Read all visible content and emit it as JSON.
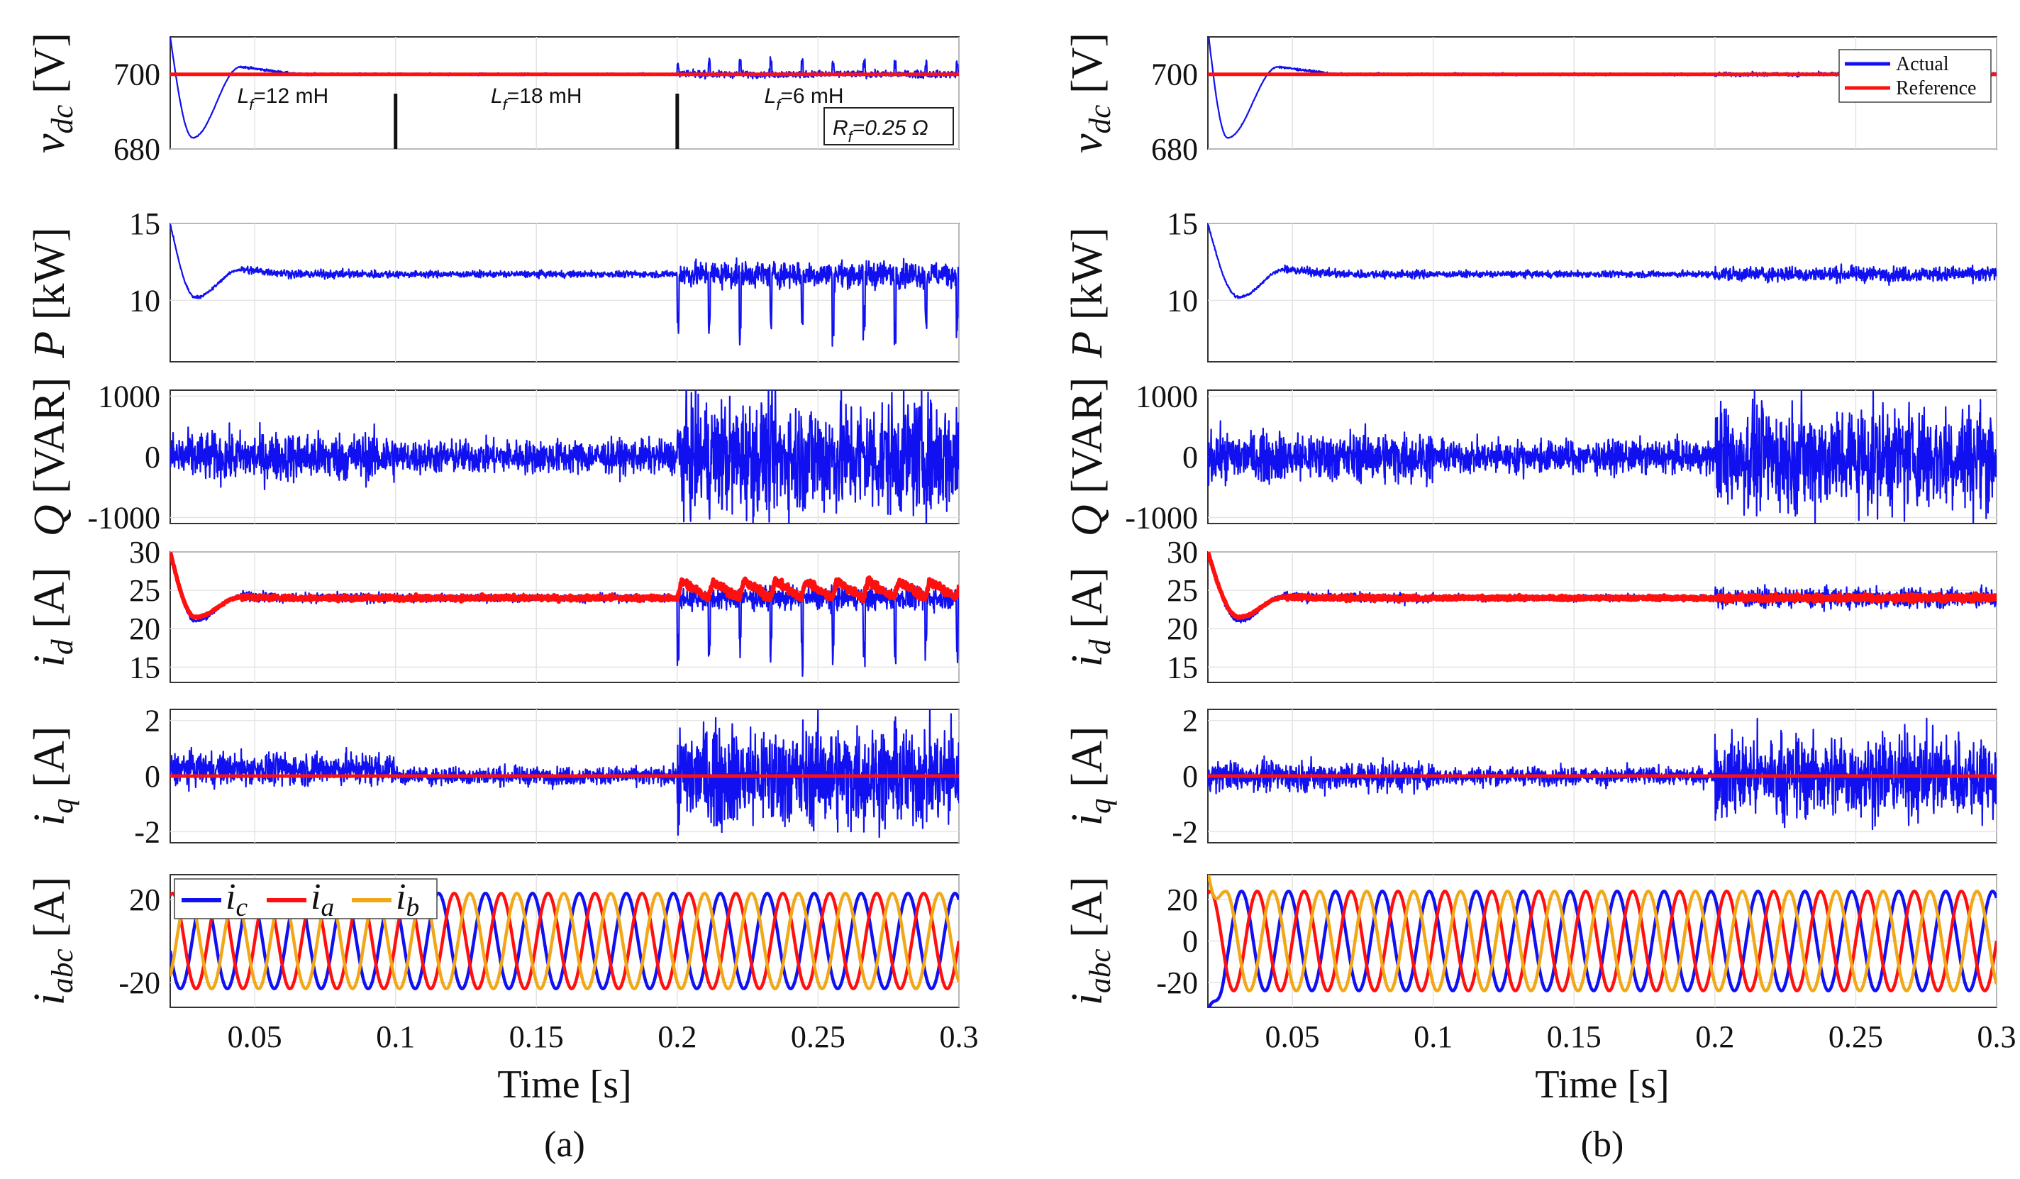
{
  "chart_data": [
    {
      "id": "a",
      "type": "line",
      "caption": "(a)",
      "xlabel": "Time [s]",
      "xlim": [
        0.02,
        0.3
      ],
      "xticks": [
        0.05,
        0.1,
        0.15,
        0.2,
        0.25,
        0.3
      ],
      "xtick_labels": [
        "0.05",
        "0.1",
        "0.15",
        "0.2",
        "0.25",
        "0.3"
      ],
      "grid": true,
      "panels": [
        {
          "key": "vdc",
          "ylabel": "v_dc [V]",
          "ylim": [
            680,
            710
          ],
          "yticks": [
            680,
            700
          ],
          "ytick_labels": [
            "680",
            "700"
          ],
          "series": [
            {
              "name": "Actual",
              "color": "#1010f0",
              "signal": "vdc",
              "base": 700,
              "noise": [
                [
                  0.02,
                  0.3
                ],
                [
                  0.1,
                  0.3
                ],
                [
                  0.2,
                  0.9
                ]
              ],
              "transient": {
                "from": 710,
                "dip": 683,
                "at": 0.028,
                "overshoot": 702,
                "settle": 0.045
              },
              "spikes": {
                "start": 0.2,
                "period": 0.011,
                "amp": 4
              }
            },
            {
              "name": "Reference",
              "color": "#ff1010",
              "signal": "const",
              "value": 700
            }
          ],
          "annotations": {
            "labels": [
              {
                "main": "L",
                "sub": "f",
                "rest": "=12 mH",
                "x": 0.06
              },
              {
                "main": "L",
                "sub": "f",
                "rest": "=18 mH",
                "x": 0.15
              },
              {
                "main": "L",
                "sub": "f",
                "rest": "=6 mH",
                "x": 0.245
              }
            ],
            "markers": [
              0.1,
              0.2
            ],
            "box": {
              "main": "R",
              "sub": "f",
              "rest": "=0.25 Ω"
            }
          }
        },
        {
          "key": "P",
          "ylabel": "P [kW]",
          "ylim": [
            6,
            15
          ],
          "yticks": [
            10,
            15
          ],
          "ytick_labels": [
            "10",
            "15"
          ],
          "series": [
            {
              "name": "Actual",
              "color": "#1010f0",
              "signal": "P",
              "base": 11.7,
              "noise": [
                [
                  0.02,
                  0.25
                ],
                [
                  0.1,
                  0.2
                ],
                [
                  0.2,
                  0.8
                ]
              ],
              "transient": {
                "from": 15,
                "dip": 10.2,
                "at": 0.029,
                "overshoot": 12.0,
                "settle": 0.045
              },
              "spikes": {
                "start": 0.2,
                "period": 0.011,
                "amp": -4.5
              }
            }
          ]
        },
        {
          "key": "Q",
          "ylabel": "Q [VAR]",
          "ylim": [
            -1100,
            1100
          ],
          "yticks": [
            -1000,
            0,
            1000
          ],
          "ytick_labels": [
            "-1000",
            "0",
            "1000"
          ],
          "series": [
            {
              "name": "Actual",
              "color": "#1010f0",
              "signal": "Q",
              "base": 0,
              "noise": [
                [
                  0.02,
                  380
                ],
                [
                  0.1,
                  260
                ],
                [
                  0.2,
                  900
                ]
              ]
            }
          ]
        },
        {
          "key": "id",
          "ylabel": "i_d [A]",
          "ylim": [
            13,
            30
          ],
          "yticks": [
            15,
            20,
            25,
            30
          ],
          "ytick_labels": [
            "15",
            "20",
            "25",
            "30"
          ],
          "series": [
            {
              "name": "Actual",
              "color": "#1010f0",
              "signal": "id",
              "base": 24,
              "noise": [
                [
                  0.02,
                  0.6
                ],
                [
                  0.1,
                  0.5
                ],
                [
                  0.2,
                  1.4
                ]
              ],
              "transient": {
                "from": 30,
                "dip": 21,
                "at": 0.029,
                "overshoot": 24.3,
                "settle": 0.045
              },
              "spikes": {
                "start": 0.2,
                "period": 0.011,
                "amp": -9
              }
            },
            {
              "name": "Reference",
              "color": "#ff1010",
              "signal": "idref",
              "base": 24,
              "noise": [
                [
                  0.02,
                  0.3
                ],
                [
                  0.1,
                  0.3
                ],
                [
                  0.2,
                  0.5
                ]
              ],
              "transient": {
                "from": 30,
                "dip": 21.5,
                "at": 0.029,
                "overshoot": 24.1,
                "settle": 0.045
              },
              "saw": {
                "start": 0.2,
                "period": 0.011,
                "amp": 2.2
              }
            }
          ]
        },
        {
          "key": "iq",
          "ylabel": "i_q [A]",
          "ylim": [
            -2.4,
            2.4
          ],
          "yticks": [
            -2,
            0,
            2
          ],
          "ytick_labels": [
            "-2",
            "0",
            "2"
          ],
          "series": [
            {
              "name": "Actual",
              "color": "#1010f0",
              "signal": "iq",
              "base": 0,
              "noise": [
                [
                  0.02,
                  0.55
                ],
                [
                  0.1,
                  0.3
                ],
                [
                  0.2,
                  1.7
                ]
              ],
              "drift": [
                [
                  0.02,
                  0.25
                ],
                [
                  0.1,
                  0.0
                ]
              ]
            },
            {
              "name": "Reference",
              "color": "#ff1010",
              "signal": "const",
              "value": 0
            }
          ]
        },
        {
          "key": "iabc",
          "ylabel": "i_abc [A]",
          "ylim": [
            -32,
            32
          ],
          "yticks": [
            -20,
            20
          ],
          "ytick_labels": [
            "-20",
            "20"
          ],
          "series": [
            {
              "name": "i_c",
              "color": "#1010f0",
              "signal": "sine",
              "amp": 23,
              "freq": 60,
              "phase": 120
            },
            {
              "name": "i_a",
              "color": "#ff1010",
              "signal": "sine",
              "amp": 23,
              "freq": 60,
              "phase": 0
            },
            {
              "name": "i_b",
              "color": "#f0a818",
              "signal": "sine",
              "amp": 23,
              "freq": 60,
              "phase": -120
            }
          ],
          "legend": {
            "placement": "top-left",
            "entries": [
              {
                "main": "i",
                "sub": "c",
                "color": "#1010f0"
              },
              {
                "main": "i",
                "sub": "a",
                "color": "#ff1010"
              },
              {
                "main": "i",
                "sub": "b",
                "color": "#f0a818"
              }
            ]
          }
        }
      ]
    },
    {
      "id": "b",
      "type": "line",
      "caption": "(b)",
      "xlabel": "Time [s]",
      "xlim": [
        0.02,
        0.3
      ],
      "xticks": [
        0.05,
        0.1,
        0.15,
        0.2,
        0.25,
        0.3
      ],
      "xtick_labels": [
        "0.05",
        "0.1",
        "0.15",
        "0.2",
        "0.25",
        "0.3"
      ],
      "grid": true,
      "panels": [
        {
          "key": "vdc",
          "ylabel": "v_dc [V]",
          "ylim": [
            680,
            710
          ],
          "yticks": [
            680,
            700
          ],
          "ytick_labels": [
            "680",
            "700"
          ],
          "series": [
            {
              "name": "Actual",
              "color": "#1010f0",
              "signal": "vdc",
              "base": 700,
              "noise": [
                [
                  0.02,
                  0.3
                ],
                [
                  0.1,
                  0.3
                ],
                [
                  0.2,
                  0.5
                ]
              ],
              "transient": {
                "from": 712,
                "dip": 683,
                "at": 0.027,
                "overshoot": 702,
                "settle": 0.045
              }
            },
            {
              "name": "Reference",
              "color": "#ff1010",
              "signal": "const",
              "value": 700
            }
          ],
          "legend": {
            "placement": "bottom-right",
            "entries": [
              {
                "label": "Actual",
                "color": "#1010f0"
              },
              {
                "label": "Reference",
                "color": "#ff1010"
              }
            ]
          }
        },
        {
          "key": "P",
          "ylabel": "P [kW]",
          "ylim": [
            6,
            15
          ],
          "yticks": [
            10,
            15
          ],
          "ytick_labels": [
            "10",
            "15"
          ],
          "series": [
            {
              "name": "Actual",
              "color": "#1010f0",
              "signal": "P",
              "base": 11.7,
              "noise": [
                [
                  0.02,
                  0.25
                ],
                [
                  0.1,
                  0.2
                ],
                [
                  0.2,
                  0.45
                ]
              ],
              "transient": {
                "from": 15,
                "dip": 10.2,
                "at": 0.031,
                "overshoot": 12.0,
                "settle": 0.047
              }
            }
          ]
        },
        {
          "key": "Q",
          "ylabel": "Q [VAR]",
          "ylim": [
            -1100,
            1100
          ],
          "yticks": [
            -1000,
            0,
            1000
          ],
          "ytick_labels": [
            "-1000",
            "0",
            "1000"
          ],
          "series": [
            {
              "name": "Actual",
              "color": "#1010f0",
              "signal": "Q",
              "base": 0,
              "noise": [
                [
                  0.02,
                  380
                ],
                [
                  0.1,
                  250
                ],
                [
                  0.2,
                  820
                ]
              ]
            }
          ]
        },
        {
          "key": "id",
          "ylabel": "i_d [A]",
          "ylim": [
            13,
            30
          ],
          "yticks": [
            15,
            20,
            25,
            30
          ],
          "ytick_labels": [
            "15",
            "20",
            "25",
            "30"
          ],
          "series": [
            {
              "name": "Actual",
              "color": "#1010f0",
              "signal": "id",
              "base": 24,
              "noise": [
                [
                  0.02,
                  0.6
                ],
                [
                  0.1,
                  0.4
                ],
                [
                  0.2,
                  1.2
                ]
              ],
              "transient": {
                "from": 30,
                "dip": 21,
                "at": 0.031,
                "overshoot": 24.3,
                "settle": 0.047
              }
            },
            {
              "name": "Reference",
              "color": "#ff1010",
              "signal": "idref",
              "base": 24,
              "noise": [
                [
                  0.02,
                  0.3
                ],
                [
                  0.1,
                  0.25
                ],
                [
                  0.2,
                  0.4
                ]
              ],
              "transient": {
                "from": 30,
                "dip": 21.5,
                "at": 0.031,
                "overshoot": 24.1,
                "settle": 0.047
              }
            }
          ]
        },
        {
          "key": "iq",
          "ylabel": "i_q [A]",
          "ylim": [
            -2.4,
            2.4
          ],
          "yticks": [
            -2,
            0,
            2
          ],
          "ytick_labels": [
            "-2",
            "0",
            "2"
          ],
          "series": [
            {
              "name": "Actual",
              "color": "#1010f0",
              "signal": "iq",
              "base": 0,
              "noise": [
                [
                  0.02,
                  0.5
                ],
                [
                  0.1,
                  0.3
                ],
                [
                  0.2,
                  1.4
                ]
              ]
            },
            {
              "name": "Reference",
              "color": "#ff1010",
              "signal": "const",
              "value": 0
            }
          ]
        },
        {
          "key": "iabc",
          "ylabel": "i_abc [A]",
          "ylim": [
            -32,
            32
          ],
          "yticks": [
            -20,
            0,
            20
          ],
          "ytick_labels": [
            "-20",
            "0",
            "20"
          ],
          "series": [
            {
              "name": "i_c",
              "color": "#1010f0",
              "signal": "sine",
              "amp": 24,
              "freq": 60,
              "phase": 120,
              "start": {
                "value": -34
              }
            },
            {
              "name": "i_a",
              "color": "#ff1010",
              "signal": "sine",
              "amp": 24,
              "freq": 60,
              "phase": 0
            },
            {
              "name": "i_b",
              "color": "#f0a818",
              "signal": "sine",
              "amp": 24,
              "freq": 60,
              "phase": -120,
              "start": {
                "value": 34
              }
            }
          ]
        }
      ]
    }
  ]
}
